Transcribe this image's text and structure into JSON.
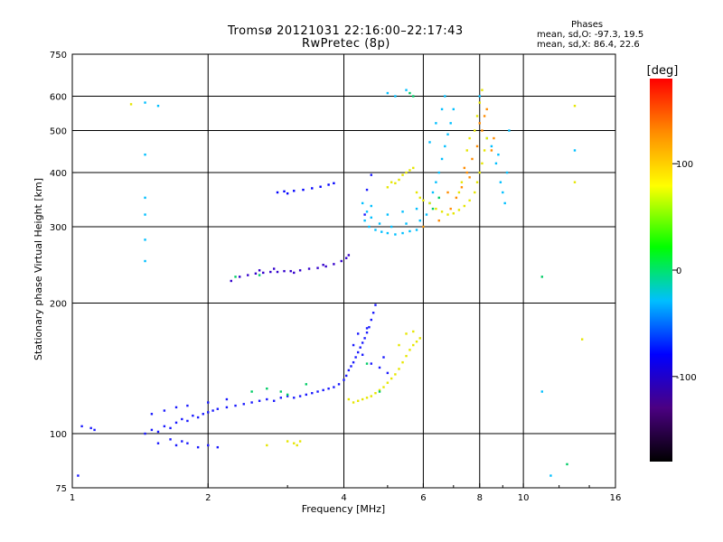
{
  "header": {
    "title": "Tromsø 20121031 22:16:00–22:17:43",
    "subtitle": "RwPretec (8p)"
  },
  "stats": {
    "heading": "Phases",
    "line_o": "mean, sd,O: -97.3, 19.5",
    "line_x": "mean, sd,X:  86.4, 22.6"
  },
  "chart_data": {
    "type": "scatter",
    "title": "Tromsø 20121031 22:16:00–22:17:43",
    "subtitle": "RwPretec (8p)",
    "xlabel": "Frequency [MHz]",
    "ylabel": "Stationary phase Virtual Height [km]",
    "x_scale": "log",
    "y_scale": "log",
    "xlim": [
      1,
      16
    ],
    "ylim": [
      75,
      750
    ],
    "x_ticks": [
      1,
      2,
      4,
      6,
      8,
      10,
      16
    ],
    "x_tick_labels": [
      "1",
      "2",
      "4",
      "6",
      "8",
      "10",
      "16"
    ],
    "y_ticks": [
      75,
      100,
      200,
      300,
      400,
      500,
      600,
      750
    ],
    "y_tick_labels": [
      "75",
      "100",
      "200",
      "300",
      "400",
      "500",
      "600",
      "750"
    ],
    "grid_x": [
      2,
      4,
      6,
      8,
      10
    ],
    "grid_y": [
      100,
      200,
      300,
      400,
      500,
      600
    ],
    "colorbar": {
      "label": "[deg]",
      "range": [
        -180,
        180
      ],
      "ticks": [
        100,
        0,
        -100
      ],
      "tick_labels": [
        "100",
        "0",
        "-100"
      ],
      "colors": [
        "#000000",
        "#4b0082",
        "#0000ff",
        "#00bfff",
        "#00ff00",
        "#ffff00",
        "#ff8c00",
        "#ff0000"
      ]
    },
    "series": [
      {
        "points": [
          [
            1.45,
            100
          ],
          [
            1.5,
            102
          ],
          [
            1.55,
            101
          ],
          [
            1.6,
            104
          ],
          [
            1.65,
            103
          ],
          [
            1.7,
            106
          ],
          [
            1.75,
            108
          ],
          [
            1.8,
            107
          ],
          [
            1.85,
            110
          ],
          [
            1.9,
            109
          ],
          [
            1.95,
            111
          ],
          [
            2.0,
            112
          ],
          [
            2.05,
            113
          ],
          [
            2.1,
            114
          ],
          [
            2.2,
            115
          ],
          [
            2.3,
            116
          ],
          [
            2.4,
            117
          ],
          [
            2.5,
            118
          ],
          [
            2.6,
            119
          ],
          [
            2.7,
            120
          ],
          [
            2.8,
            119
          ],
          [
            2.9,
            121
          ],
          [
            3.0,
            122
          ],
          [
            3.1,
            121
          ],
          [
            3.2,
            122
          ],
          [
            3.3,
            123
          ],
          [
            3.4,
            124
          ],
          [
            3.5,
            125
          ],
          [
            3.6,
            126
          ],
          [
            3.7,
            127
          ],
          [
            3.8,
            128
          ],
          [
            3.9,
            130
          ],
          [
            4.0,
            133
          ],
          [
            4.05,
            136
          ],
          [
            4.1,
            140
          ],
          [
            4.15,
            143
          ],
          [
            4.2,
            146
          ],
          [
            4.25,
            150
          ],
          [
            4.3,
            154
          ],
          [
            4.35,
            158
          ],
          [
            4.4,
            162
          ],
          [
            4.45,
            166
          ],
          [
            4.5,
            171
          ],
          [
            4.55,
            176
          ],
          [
            4.6,
            183
          ],
          [
            4.65,
            190
          ],
          [
            4.7,
            198
          ],
          [
            1.1,
            103
          ],
          [
            1.12,
            102
          ],
          [
            1.5,
            111
          ],
          [
            1.6,
            113
          ],
          [
            1.7,
            115
          ],
          [
            1.8,
            116
          ],
          [
            2.0,
            118
          ],
          [
            2.2,
            120
          ],
          [
            1.55,
            95
          ],
          [
            1.7,
            94
          ],
          [
            1.8,
            95
          ],
          [
            1.9,
            93
          ],
          [
            2.0,
            94
          ],
          [
            2.1,
            93
          ],
          [
            1.65,
            97
          ],
          [
            1.75,
            96
          ],
          [
            4.2,
            160
          ],
          [
            4.4,
            152
          ],
          [
            4.6,
            145
          ],
          [
            4.8,
            142
          ],
          [
            5.0,
            138
          ],
          [
            4.3,
            170
          ],
          [
            4.5,
            175
          ],
          [
            4.9,
            150
          ],
          [
            1.05,
            104
          ],
          [
            1.03,
            80
          ],
          [
            4.45,
            320
          ],
          [
            4.5,
            365
          ],
          [
            4.6,
            395
          ]
        ]
      },
      {
        "points": [
          [
            2.25,
            225
          ],
          [
            2.35,
            230
          ],
          [
            2.45,
            232
          ],
          [
            2.55,
            234
          ],
          [
            2.65,
            235
          ],
          [
            2.75,
            236
          ],
          [
            2.85,
            236
          ],
          [
            2.95,
            237
          ],
          [
            3.05,
            237
          ],
          [
            3.2,
            238
          ],
          [
            3.35,
            240
          ],
          [
            3.5,
            241
          ],
          [
            3.65,
            243
          ],
          [
            3.8,
            246
          ],
          [
            3.95,
            250
          ],
          [
            4.05,
            254
          ],
          [
            4.1,
            258
          ],
          [
            2.8,
            240
          ],
          [
            2.6,
            238
          ],
          [
            3.1,
            235
          ],
          [
            3.6,
            245
          ]
        ]
      },
      {
        "points": [
          [
            2.85,
            360
          ],
          [
            2.95,
            362
          ],
          [
            3.1,
            363
          ],
          [
            3.25,
            365
          ],
          [
            3.4,
            368
          ],
          [
            3.55,
            371
          ],
          [
            3.7,
            375
          ],
          [
            3.8,
            378
          ],
          [
            3.0,
            358
          ]
        ]
      },
      {
        "points": [
          [
            4.45,
            310
          ],
          [
            4.55,
            300
          ],
          [
            4.7,
            295
          ],
          [
            4.85,
            292
          ],
          [
            5.0,
            290
          ],
          [
            5.2,
            288
          ],
          [
            5.4,
            290
          ],
          [
            5.6,
            293
          ],
          [
            5.8,
            295
          ],
          [
            6.0,
            300
          ],
          [
            4.5,
            325
          ],
          [
            4.6,
            315
          ],
          [
            4.8,
            305
          ],
          [
            5.1,
            300
          ],
          [
            5.5,
            305
          ],
          [
            5.9,
            310
          ],
          [
            4.4,
            340
          ],
          [
            4.6,
            335
          ],
          [
            5.0,
            320
          ],
          [
            5.4,
            325
          ],
          [
            5.8,
            330
          ],
          [
            6.1,
            320
          ],
          [
            6.2,
            340
          ],
          [
            6.3,
            360
          ],
          [
            6.4,
            380
          ],
          [
            6.5,
            400
          ],
          [
            6.6,
            430
          ],
          [
            6.7,
            460
          ],
          [
            6.8,
            490
          ],
          [
            6.9,
            520
          ],
          [
            7.0,
            560
          ],
          [
            6.2,
            470
          ],
          [
            6.4,
            520
          ],
          [
            6.6,
            560
          ],
          [
            6.7,
            600
          ],
          [
            5.5,
            620
          ],
          [
            5.0,
            610
          ],
          [
            5.2,
            600
          ],
          [
            1.45,
            580
          ],
          [
            1.55,
            570
          ],
          [
            1.45,
            440
          ],
          [
            1.45,
            350
          ],
          [
            1.45,
            320
          ],
          [
            1.45,
            280
          ],
          [
            1.45,
            250
          ],
          [
            11.0,
            125
          ],
          [
            8.9,
            380
          ],
          [
            9.0,
            360
          ],
          [
            9.1,
            340
          ],
          [
            9.2,
            400
          ],
          [
            8.7,
            420
          ],
          [
            8.8,
            440
          ],
          [
            9.3,
            500
          ],
          [
            8.5,
            460
          ],
          [
            8.3,
            480
          ],
          [
            8.0,
            600
          ],
          [
            13.0,
            450
          ],
          [
            11.5,
            80
          ]
        ]
      },
      {
        "points": [
          [
            4.1,
            120
          ],
          [
            4.2,
            118
          ],
          [
            4.3,
            119
          ],
          [
            4.4,
            120
          ],
          [
            4.5,
            121
          ],
          [
            4.6,
            122
          ],
          [
            4.7,
            124
          ],
          [
            4.8,
            126
          ],
          [
            4.9,
            128
          ],
          [
            5.0,
            131
          ],
          [
            5.1,
            134
          ],
          [
            5.2,
            137
          ],
          [
            5.3,
            141
          ],
          [
            5.4,
            146
          ],
          [
            5.5,
            151
          ],
          [
            5.6,
            156
          ],
          [
            5.7,
            160
          ],
          [
            5.8,
            163
          ],
          [
            5.9,
            166
          ],
          [
            5.3,
            160
          ],
          [
            5.5,
            170
          ],
          [
            5.7,
            172
          ],
          [
            5.2,
            378
          ],
          [
            5.3,
            385
          ],
          [
            5.4,
            395
          ],
          [
            5.5,
            400
          ],
          [
            5.6,
            405
          ],
          [
            5.7,
            410
          ],
          [
            5.0,
            370
          ],
          [
            5.1,
            380
          ],
          [
            5.8,
            360
          ],
          [
            5.9,
            350
          ],
          [
            6.0,
            345
          ],
          [
            6.2,
            340
          ],
          [
            6.4,
            330
          ],
          [
            6.6,
            325
          ],
          [
            6.8,
            320
          ],
          [
            7.0,
            322
          ],
          [
            7.2,
            328
          ],
          [
            7.4,
            335
          ],
          [
            7.6,
            345
          ],
          [
            7.8,
            360
          ],
          [
            7.9,
            380
          ],
          [
            8.0,
            400
          ],
          [
            8.1,
            420
          ],
          [
            8.2,
            450
          ],
          [
            8.3,
            480
          ],
          [
            7.8,
            500
          ],
          [
            7.9,
            540
          ],
          [
            8.0,
            580
          ],
          [
            8.1,
            620
          ],
          [
            7.5,
            450
          ],
          [
            7.6,
            480
          ],
          [
            7.3,
            380
          ],
          [
            7.2,
            360
          ],
          [
            3.0,
            96
          ],
          [
            3.1,
            95
          ],
          [
            3.2,
            96
          ],
          [
            3.15,
            94
          ],
          [
            2.7,
            94
          ],
          [
            1.35,
            575
          ],
          [
            13.0,
            570
          ],
          [
            13.5,
            165
          ],
          [
            13.0,
            380
          ]
        ]
      },
      {
        "points": [
          [
            6.0,
            300
          ],
          [
            6.5,
            310
          ],
          [
            6.9,
            330
          ],
          [
            7.1,
            350
          ],
          [
            7.3,
            370
          ],
          [
            7.5,
            400
          ],
          [
            7.7,
            430
          ],
          [
            7.9,
            460
          ],
          [
            8.1,
            500
          ],
          [
            8.2,
            540
          ],
          [
            8.3,
            560
          ],
          [
            8.0,
            520
          ],
          [
            7.6,
            390
          ],
          [
            7.4,
            410
          ],
          [
            6.8,
            360
          ],
          [
            8.5,
            450
          ],
          [
            8.6,
            480
          ]
        ]
      },
      {
        "points": [
          [
            5.6,
            610
          ],
          [
            5.7,
            600
          ],
          [
            6.3,
            330
          ],
          [
            6.5,
            350
          ],
          [
            4.8,
            125
          ],
          [
            4.5,
            145
          ],
          [
            3.0,
            123
          ],
          [
            2.9,
            125
          ],
          [
            2.7,
            127
          ],
          [
            2.5,
            125
          ],
          [
            2.3,
            230
          ],
          [
            2.6,
            232
          ],
          [
            3.3,
            130
          ],
          [
            12.5,
            85
          ],
          [
            11.0,
            230
          ]
        ]
      }
    ]
  }
}
